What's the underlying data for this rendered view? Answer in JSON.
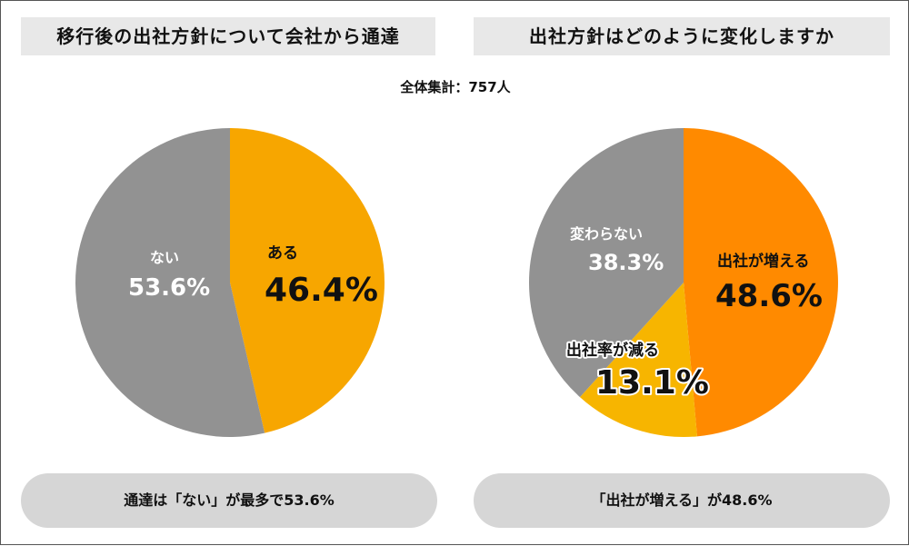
{
  "left_panel": {
    "title": "移行後の出社方針について会社から通達",
    "summary": "通達は「ない」が最多で53.6%"
  },
  "right_panel": {
    "title": "出社方針はどのように変化しますか",
    "summary": "「出社が増える」が48.6%"
  },
  "total_label": "全体集計：757人",
  "colors": {
    "gray": "#929292",
    "amber": "#f7a600",
    "orange": "#ff8a00",
    "yellow": "#f7b500"
  },
  "chart_data": [
    {
      "type": "pie",
      "slices": [
        {
          "label": "ある",
          "value": 46.4,
          "value_label": "46.4%",
          "color": "#f7a600",
          "text_color": "#111111"
        },
        {
          "label": "ない",
          "value": 53.6,
          "value_label": "53.6%",
          "color": "#929292",
          "text_color": "#ffffff"
        }
      ]
    },
    {
      "type": "pie",
      "slices": [
        {
          "label": "出社が増える",
          "value": 48.6,
          "value_label": "48.6%",
          "color": "#ff8a00",
          "text_color": "#111111"
        },
        {
          "label": "出社率が減る",
          "value": 13.1,
          "value_label": "13.1%",
          "color": "#f7b500",
          "text_color": "#111111"
        },
        {
          "label": "変わらない",
          "value": 38.3,
          "value_label": "38.3%",
          "color": "#929292",
          "text_color": "#ffffff"
        }
      ]
    }
  ]
}
